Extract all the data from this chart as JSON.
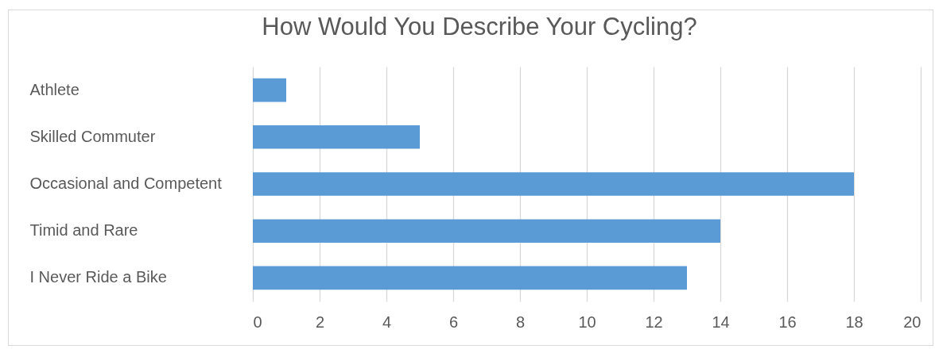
{
  "chart_data": {
    "type": "bar",
    "orientation": "horizontal",
    "title": "How Would You Describe Your Cycling?",
    "categories": [
      "Athlete",
      "Skilled Commuter",
      "Occasional and Competent",
      "Timid and Rare",
      "I Never Ride a Bike"
    ],
    "values": [
      1,
      5,
      18,
      14,
      13
    ],
    "color": "#5b9bd5",
    "xlim": [
      0,
      20
    ],
    "xticks": [
      0,
      2,
      4,
      6,
      8,
      10,
      12,
      14,
      16,
      18,
      20
    ],
    "grid": "x"
  }
}
